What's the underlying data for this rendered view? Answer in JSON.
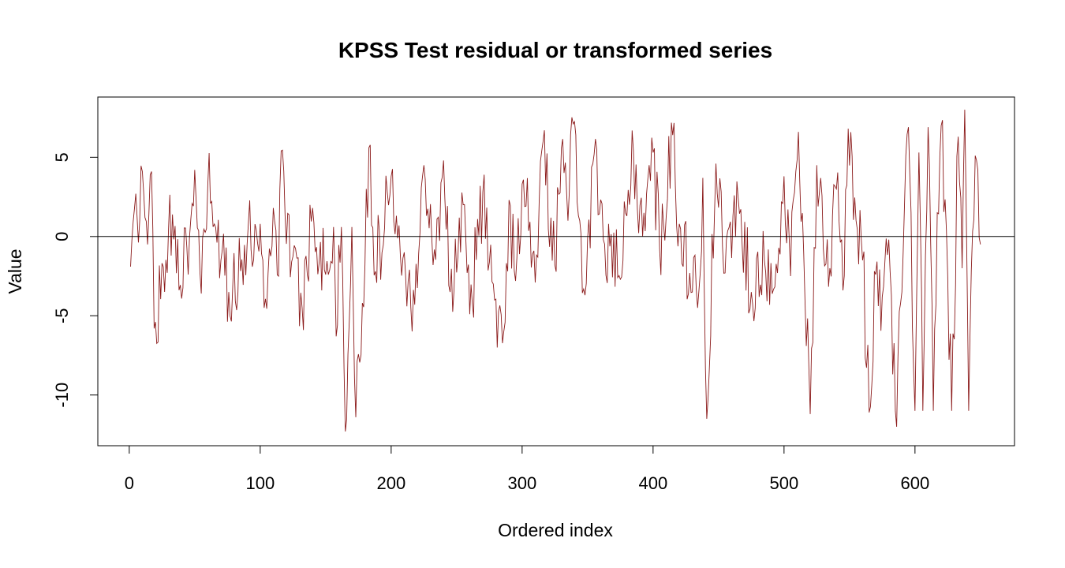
{
  "chart_data": {
    "type": "line",
    "title": "KPSS Test residual or transformed series",
    "xlabel": "Ordered index",
    "ylabel": "Value",
    "xlim": [
      -24,
      676
    ],
    "ylim": [
      -13.2,
      8.8
    ],
    "x_ticks": [
      0,
      100,
      200,
      300,
      400,
      500,
      600
    ],
    "y_ticks": [
      -10,
      -5,
      0,
      5
    ],
    "reference_line": 0,
    "grid": false,
    "legend": "none",
    "line_color": "#8B1A1A",
    "n_points": 650,
    "series": [
      {
        "keypoints": [
          [
            1,
            -1.9
          ],
          [
            6,
            1.2
          ],
          [
            10,
            4.1
          ],
          [
            14,
            -0.5
          ],
          [
            17,
            4.1
          ],
          [
            19,
            -5.8
          ],
          [
            30,
            0.5
          ],
          [
            45,
            -2.4
          ],
          [
            50,
            4.2
          ],
          [
            55,
            -3.6
          ],
          [
            60,
            3.3
          ],
          [
            70,
            -1.5
          ],
          [
            76,
            -3.5
          ],
          [
            90,
            -0.5
          ],
          [
            100,
            0.8
          ],
          [
            103,
            -4.5
          ],
          [
            110,
            1.8
          ],
          [
            114,
            -2.5
          ],
          [
            116,
            5.4
          ],
          [
            124,
            -1.6
          ],
          [
            132,
            -4.5
          ],
          [
            140,
            1.8
          ],
          [
            150,
            -2.4
          ],
          [
            156,
            0.6
          ],
          [
            158,
            -6.3
          ],
          [
            162,
            0.6
          ],
          [
            165,
            -12.3
          ],
          [
            170,
            0.6
          ],
          [
            173,
            -11.4
          ],
          [
            178,
            -4.2
          ],
          [
            183,
            5.6
          ],
          [
            188,
            -2.2
          ],
          [
            200,
            3.8
          ],
          [
            210,
            -1.0
          ],
          [
            218,
            -4.3
          ],
          [
            225,
            4.5
          ],
          [
            232,
            -1.8
          ],
          [
            240,
            4.8
          ],
          [
            245,
            -3.5
          ],
          [
            255,
            2.0
          ],
          [
            260,
            -4.9
          ],
          [
            270,
            2.8
          ],
          [
            278,
            -3.0
          ],
          [
            281,
            -7.0
          ],
          [
            286,
            -6.0
          ],
          [
            290,
            2.3
          ],
          [
            295,
            -2.8
          ],
          [
            300,
            3.3
          ],
          [
            312,
            -1.3
          ],
          [
            316,
            6.0
          ],
          [
            325,
            -1.8
          ],
          [
            330,
            5.6
          ],
          [
            335,
            1.0
          ],
          [
            339,
            7.1
          ],
          [
            344,
            1.0
          ],
          [
            348,
            -3.7
          ],
          [
            355,
            5.2
          ],
          [
            362,
            -0.2
          ],
          [
            375,
            -2.7
          ],
          [
            385,
            5.4
          ],
          [
            392,
            0.0
          ],
          [
            400,
            5.3
          ],
          [
            405,
            -0.8
          ],
          [
            415,
            6.4
          ],
          [
            420,
            0.8
          ],
          [
            428,
            -2.3
          ],
          [
            434,
            -4.5
          ],
          [
            438,
            3.7
          ],
          [
            441,
            -11.5
          ],
          [
            448,
            4.6
          ],
          [
            455,
            -2.3
          ],
          [
            465,
            2.4
          ],
          [
            475,
            -3.5
          ],
          [
            485,
            -1.5
          ],
          [
            495,
            -2.3
          ],
          [
            500,
            3.8
          ],
          [
            505,
            -2.5
          ],
          [
            511,
            6.6
          ],
          [
            516,
            -4.0
          ],
          [
            520,
            -11.2
          ],
          [
            525,
            4.5
          ],
          [
            535,
            -2.0
          ],
          [
            540,
            3.0
          ],
          [
            545,
            -3.4
          ],
          [
            549,
            6.8
          ],
          [
            555,
            1.0
          ],
          [
            560,
            -1.5
          ],
          [
            565,
            -11.1
          ],
          [
            570,
            -2.4
          ],
          [
            575,
            -3.8
          ],
          [
            580,
            -0.2
          ],
          [
            585,
            -11.0
          ],
          [
            590,
            -3.5
          ],
          [
            595,
            6.9
          ],
          [
            600,
            -11.0
          ],
          [
            603,
            5.3
          ],
          [
            606,
            -11.0
          ],
          [
            610,
            6.9
          ],
          [
            614,
            -11.0
          ],
          [
            617,
            1.5
          ],
          [
            620,
            7.0
          ],
          [
            625,
            -2.5
          ],
          [
            628,
            -11.0
          ],
          [
            633,
            6.3
          ],
          [
            636,
            -2.0
          ],
          [
            638,
            8.0
          ],
          [
            641,
            -11.0
          ],
          [
            646,
            5.1
          ],
          [
            650,
            -0.5
          ]
        ]
      }
    ]
  }
}
